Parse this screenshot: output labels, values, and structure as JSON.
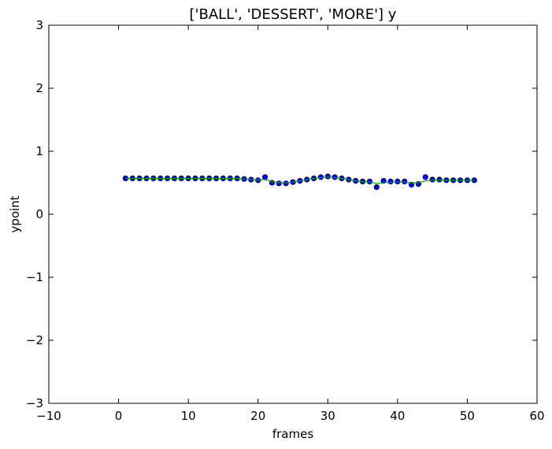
{
  "chart_data": {
    "type": "scatter",
    "title": "['BALL', 'DESSERT', 'MORE'] y",
    "xlabel": "frames",
    "ylabel": "ypoint",
    "xlim": [
      -10,
      60
    ],
    "ylim": [
      -3,
      3
    ],
    "xticks": [
      -10,
      0,
      10,
      20,
      30,
      40,
      50,
      60
    ],
    "yticks": [
      -3,
      -2,
      -1,
      0,
      1,
      2,
      3
    ],
    "xtick_labels": [
      "−10",
      "0",
      "10",
      "20",
      "30",
      "40",
      "50",
      "60"
    ],
    "ytick_labels": [
      "−3",
      "−2",
      "−1",
      "0",
      "1",
      "2",
      "3"
    ],
    "grid": false,
    "colors": {
      "points": "#0000ff",
      "line": "#00aa00",
      "axes": "#000000"
    },
    "series": [
      {
        "kind": "points",
        "x": [
          1,
          2,
          3,
          4,
          5,
          6,
          7,
          8,
          9,
          10,
          11,
          12,
          13,
          14,
          15,
          16,
          17,
          18,
          19,
          20,
          21,
          22,
          23,
          24,
          25,
          26,
          27,
          28,
          29,
          30,
          31,
          32,
          33,
          34,
          35,
          36,
          37,
          38,
          39,
          40,
          41,
          42,
          43,
          44,
          45,
          46,
          47,
          48,
          49,
          50,
          51
        ],
        "y": [
          0.57,
          0.57,
          0.57,
          0.57,
          0.57,
          0.57,
          0.57,
          0.57,
          0.57,
          0.57,
          0.57,
          0.57,
          0.57,
          0.57,
          0.57,
          0.57,
          0.57,
          0.56,
          0.55,
          0.54,
          0.59,
          0.5,
          0.49,
          0.49,
          0.51,
          0.53,
          0.55,
          0.57,
          0.59,
          0.6,
          0.59,
          0.57,
          0.55,
          0.53,
          0.52,
          0.52,
          0.43,
          0.53,
          0.52,
          0.52,
          0.52,
          0.47,
          0.48,
          0.59,
          0.55,
          0.55,
          0.54,
          0.54,
          0.54,
          0.54,
          0.54
        ]
      },
      {
        "kind": "line",
        "x": [
          1,
          2,
          3,
          4,
          5,
          6,
          7,
          8,
          9,
          10,
          11,
          12,
          13,
          14,
          15,
          16,
          17,
          18,
          19,
          20,
          21,
          22,
          23,
          24,
          25,
          26,
          27,
          28,
          29,
          30,
          31,
          32,
          33,
          34,
          35,
          36,
          37,
          38,
          39,
          40,
          41,
          42,
          43,
          44,
          45,
          46,
          47,
          48,
          49,
          50,
          51
        ],
        "y": [
          0.57,
          0.57,
          0.57,
          0.57,
          0.57,
          0.57,
          0.57,
          0.57,
          0.57,
          0.57,
          0.57,
          0.57,
          0.57,
          0.57,
          0.57,
          0.57,
          0.57,
          0.56,
          0.55,
          0.55,
          0.55,
          0.52,
          0.5,
          0.5,
          0.51,
          0.53,
          0.55,
          0.57,
          0.58,
          0.59,
          0.58,
          0.57,
          0.55,
          0.53,
          0.52,
          0.51,
          0.49,
          0.5,
          0.51,
          0.51,
          0.51,
          0.5,
          0.5,
          0.53,
          0.54,
          0.54,
          0.54,
          0.54,
          0.54,
          0.54,
          0.54
        ]
      }
    ]
  }
}
